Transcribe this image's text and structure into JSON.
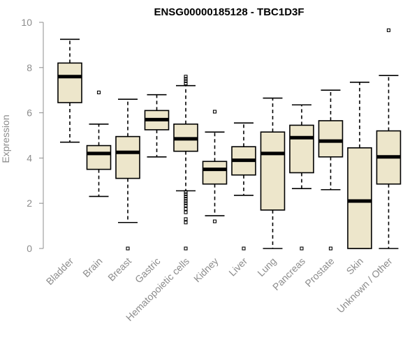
{
  "chart_data": {
    "type": "boxplot",
    "title": "ENSG00000185128 - TBC1D3F",
    "xlabel": "",
    "ylabel": "Expression",
    "ylim": [
      0,
      10
    ],
    "yticks": [
      0,
      2,
      4,
      6,
      8,
      10
    ],
    "box_color": "#ede6cb",
    "categories": [
      "Bladder",
      "Brain",
      "Breast",
      "Gastric",
      "Hematopoietic cells",
      "Kidney",
      "Liver",
      "Lung",
      "Pancreas",
      "Prostate",
      "Skin",
      "Unknown / Other"
    ],
    "series": [
      {
        "name": "Bladder",
        "min": 4.7,
        "q1": 6.45,
        "median": 7.6,
        "q3": 8.2,
        "max": 9.25,
        "outliers": []
      },
      {
        "name": "Brain",
        "min": 2.3,
        "q1": 3.5,
        "median": 4.2,
        "q3": 4.55,
        "max": 5.5,
        "outliers": [
          6.9
        ]
      },
      {
        "name": "Breast",
        "min": 1.15,
        "q1": 3.1,
        "median": 4.25,
        "q3": 4.95,
        "max": 6.6,
        "outliers": [
          0
        ]
      },
      {
        "name": "Gastric",
        "min": 4.05,
        "q1": 5.25,
        "median": 5.7,
        "q3": 6.1,
        "max": 6.8,
        "outliers": []
      },
      {
        "name": "Hematopoietic cells",
        "min": 2.55,
        "q1": 4.3,
        "median": 4.85,
        "q3": 5.5,
        "max": 7.2,
        "outliers": [
          0,
          1.15,
          1.3,
          1.6,
          1.75,
          1.9,
          2.0,
          2.1,
          2.2,
          2.3,
          2.4,
          2.5,
          7.3,
          7.4,
          7.5,
          7.6
        ]
      },
      {
        "name": "Kidney",
        "min": 1.45,
        "q1": 2.85,
        "median": 3.5,
        "q3": 3.85,
        "max": 5.15,
        "outliers": [
          1.2,
          6.05
        ]
      },
      {
        "name": "Liver",
        "min": 2.35,
        "q1": 3.25,
        "median": 3.9,
        "q3": 4.5,
        "max": 5.55,
        "outliers": [
          0
        ]
      },
      {
        "name": "Lung",
        "min": 0,
        "q1": 1.7,
        "median": 4.2,
        "q3": 5.15,
        "max": 6.65,
        "outliers": []
      },
      {
        "name": "Pancreas",
        "min": 2.65,
        "q1": 3.35,
        "median": 4.9,
        "q3": 5.45,
        "max": 6.35,
        "outliers": [
          0
        ]
      },
      {
        "name": "Prostate",
        "min": 2.6,
        "q1": 4.05,
        "median": 4.75,
        "q3": 5.65,
        "max": 7.0,
        "outliers": [
          0
        ]
      },
      {
        "name": "Skin",
        "min": 0,
        "q1": 0,
        "median": 2.1,
        "q3": 4.45,
        "max": 7.35,
        "outliers": []
      },
      {
        "name": "Unknown / Other",
        "min": 0,
        "q1": 2.85,
        "median": 4.05,
        "q3": 5.2,
        "max": 7.65,
        "outliers": [
          9.65
        ]
      }
    ]
  }
}
